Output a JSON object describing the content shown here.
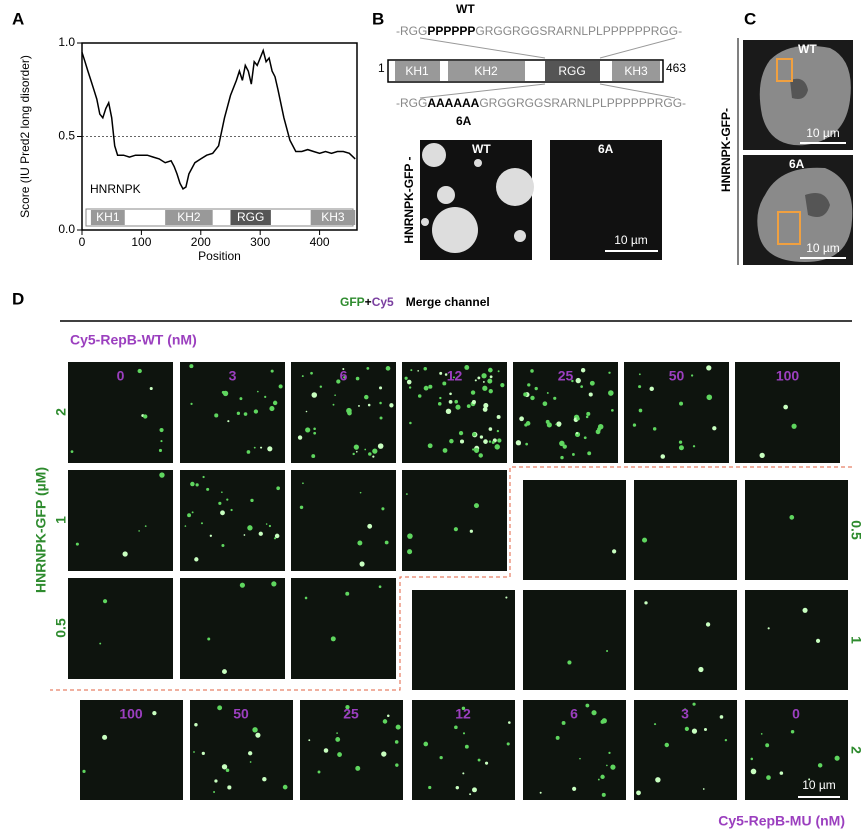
{
  "panels": {
    "a": "A",
    "b": "B",
    "c": "C",
    "d": "D"
  },
  "chart_data": {
    "type": "line",
    "y_label": "Score (IU Pred2 long disorder)",
    "x_label": "Position",
    "annotation": "HNRNPK",
    "x": [
      0,
      5,
      10,
      15,
      20,
      25,
      30,
      35,
      40,
      45,
      50,
      55,
      60,
      70,
      80,
      90,
      100,
      110,
      120,
      130,
      140,
      150,
      155,
      160,
      165,
      170,
      175,
      180,
      190,
      200,
      210,
      220,
      230,
      240,
      250,
      260,
      265,
      270,
      275,
      280,
      285,
      290,
      295,
      300,
      305,
      310,
      315,
      320,
      325,
      330,
      340,
      350,
      360,
      370,
      380,
      390,
      400,
      410,
      420,
      430,
      440,
      450,
      460
    ],
    "values": [
      0.95,
      0.9,
      0.85,
      0.8,
      0.75,
      0.7,
      0.62,
      0.6,
      0.65,
      0.68,
      0.6,
      0.45,
      0.4,
      0.4,
      0.39,
      0.4,
      0.4,
      0.4,
      0.39,
      0.38,
      0.36,
      0.37,
      0.34,
      0.3,
      0.25,
      0.22,
      0.23,
      0.3,
      0.36,
      0.38,
      0.4,
      0.41,
      0.45,
      0.6,
      0.72,
      0.8,
      0.85,
      0.8,
      0.88,
      0.85,
      0.78,
      0.9,
      0.88,
      0.92,
      0.96,
      0.9,
      0.92,
      0.85,
      0.82,
      0.75,
      0.6,
      0.48,
      0.42,
      0.42,
      0.43,
      0.42,
      0.41,
      0.42,
      0.41,
      0.42,
      0.42,
      0.41,
      0.38
    ],
    "color": "#000000",
    "reference_line": 0.5,
    "xlim": [
      0,
      463
    ],
    "ylim": [
      0,
      1
    ],
    "xticks": [
      0,
      100,
      200,
      300,
      400
    ],
    "yticks": [
      {
        "value": 0,
        "label": "0.0"
      },
      {
        "value": 0.5,
        "label": "0.5"
      },
      {
        "value": 1,
        "label": "1.0"
      }
    ],
    "domains": [
      {
        "label": "KH1",
        "start": 15,
        "end": 72,
        "color": "#999999"
      },
      {
        "label": "KH2",
        "start": 140,
        "end": 220,
        "color": "#999999"
      },
      {
        "label": "RGG",
        "start": 250,
        "end": 318,
        "color": "#555555"
      },
      {
        "label": "KH3",
        "start": 385,
        "end": 460,
        "color": "#999999"
      }
    ]
  },
  "panel_b": {
    "wt": "WT",
    "wt_seq": [
      "-RGG",
      "PPPPPP",
      "GRGGRGGSRARNLPLPPPPPPRGG-"
    ],
    "start": "1",
    "end": "463",
    "domains": [
      "KH1",
      "KH2",
      "RGG",
      "KH3"
    ],
    "mut_seq": [
      "-RGG",
      "AAAAAA",
      "GRGGRGGSRARNLPLPPPPPPRGG-"
    ],
    "mut": "6A",
    "side_label": "HNRNPK-GFP -",
    "img_wt": "WT",
    "img_mut": "6A",
    "scale_bar": "10 µm"
  },
  "panel_c": {
    "side_label": "HNRNPK-GFP-",
    "top": "WT",
    "bottom": "6A",
    "scale_top": "10 µm",
    "scale_bottom": "10 µm"
  },
  "panel_d": {
    "title_gfp": "GFP",
    "title_plus": "+",
    "title_cy5": "Cy5",
    "title_rest": "Merge channel",
    "wt_label": "Cy5-RepB-WT (nM)",
    "mu_label": "Cy5-RepB-MU (nM)",
    "y_label": "HNRNPK-GFP (µM)",
    "wt_concentrations": [
      0,
      3,
      6,
      12,
      25,
      50,
      100
    ],
    "wt_rows": [
      2,
      1,
      0.5
    ],
    "mu_rows": [
      0.5,
      1,
      2
    ],
    "mu_concentrations": [
      100,
      50,
      25,
      12,
      6,
      3,
      0
    ],
    "scale_bar": "10 µm"
  }
}
